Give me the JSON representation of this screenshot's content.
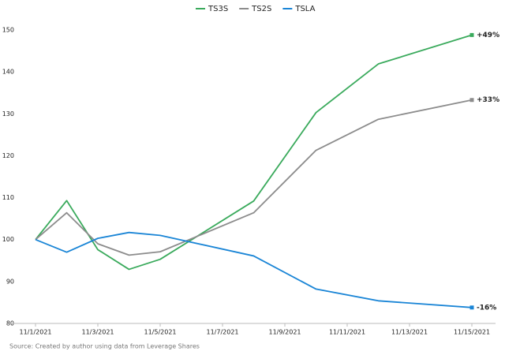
{
  "chart_data": {
    "type": "line",
    "x": [
      "11/1/2021",
      "11/2/2021",
      "11/3/2021",
      "11/4/2021",
      "11/5/2021",
      "11/8/2021",
      "11/10/2021",
      "11/12/2021",
      "11/15/2021"
    ],
    "series": [
      {
        "name": "TS3S",
        "color": "#3aaa5c",
        "values": [
          100,
          109.3,
          97.6,
          92.9,
          95.3,
          109.2,
          130.3,
          141.9,
          148.8
        ],
        "annotation": "+49%"
      },
      {
        "name": "TS2S",
        "color": "#8c8c8c",
        "values": [
          100,
          106.4,
          99,
          96.3,
          97.1,
          106.4,
          121.3,
          128.7,
          133.3
        ],
        "annotation": "+33%"
      },
      {
        "name": "TSLA",
        "color": "#1a85d6",
        "values": [
          100,
          97,
          100.3,
          101.7,
          101,
          96.1,
          88.2,
          85.4,
          83.8
        ],
        "annotation": "-16%"
      }
    ],
    "xlim": [
      "11/1/2021",
      "11/15/2021"
    ],
    "xticks": [
      "11/1/2021",
      "11/3/2021",
      "11/5/2021",
      "11/7/2021",
      "11/9/2021",
      "11/11/2021",
      "11/13/2021",
      "11/15/2021"
    ],
    "ylim": [
      80,
      150
    ],
    "yticks": [
      80,
      90,
      100,
      110,
      120,
      130,
      140,
      150
    ],
    "legend": "top",
    "source": "Source: Created by author using data from Leverage Shares"
  }
}
